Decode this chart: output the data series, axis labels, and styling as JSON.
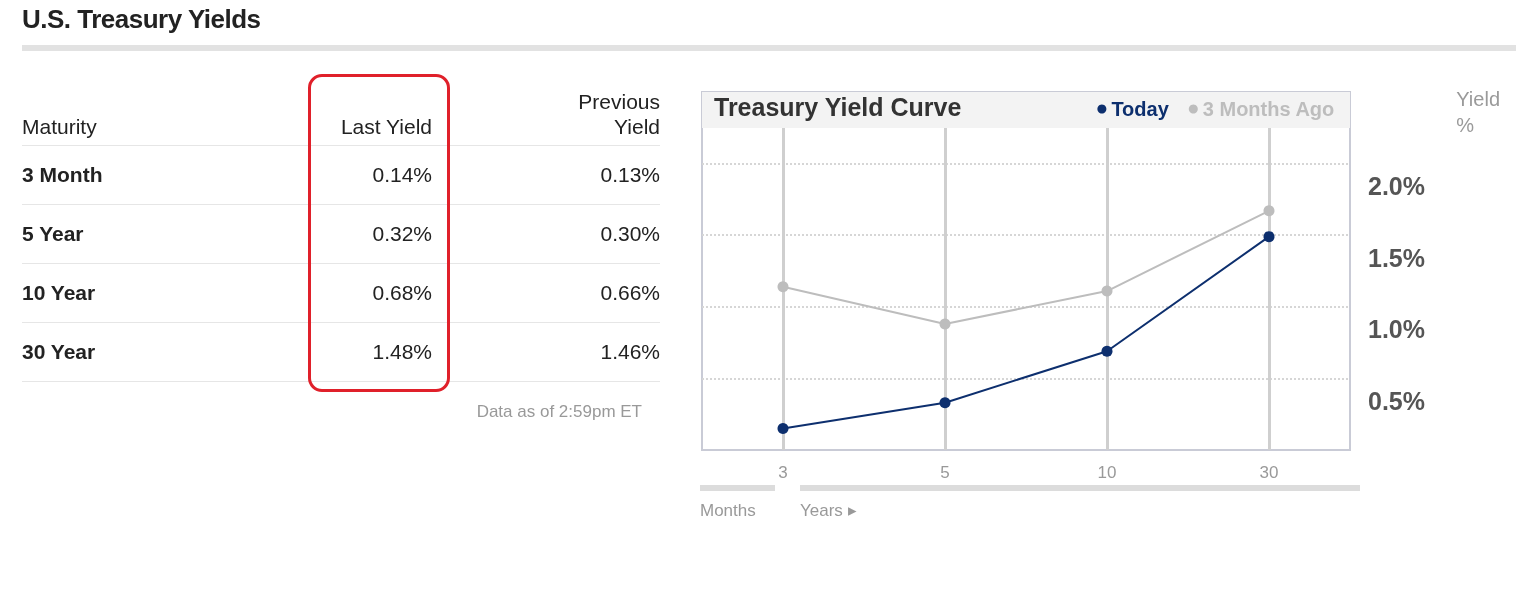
{
  "chart_data": [
    {
      "type": "other",
      "title": "U.S. Treasury Yields",
      "xlabel": "Maturity",
      "categories": [
        "3 Month",
        "5 Year",
        "10 Year",
        "30 Year"
      ],
      "series": [
        {
          "name": "Last Yield",
          "values": [
            0.14,
            0.32,
            0.68,
            1.48
          ],
          "value_labels": [
            "0.14%",
            "0.32%",
            "0.68%",
            "1.48%"
          ]
        },
        {
          "name": "Previous Yield",
          "values": [
            0.13,
            0.3,
            0.66,
            1.46
          ],
          "value_labels": [
            "0.13%",
            "0.30%",
            "0.66%",
            "1.46%"
          ]
        }
      ],
      "annotations": [
        "Data as of 2:59pm ET"
      ]
    },
    {
      "type": "line",
      "title": "Treasury Yield Curve",
      "ylabel": "Yield %",
      "categories": [
        "3",
        "5",
        "10",
        "30"
      ],
      "series": [
        {
          "name": "Today",
          "color": "#0d2f6e",
          "values": [
            0.15,
            0.33,
            0.69,
            1.49
          ]
        },
        {
          "name": "3 Months Ago",
          "color": "#bdbdbd",
          "values": [
            1.14,
            0.88,
            1.11,
            1.67
          ]
        }
      ],
      "ylim": [
        0,
        2.5
      ],
      "yticks": [
        {
          "value": 0.5,
          "label": "0.5%"
        },
        {
          "value": 1.0,
          "label": "1.0%"
        },
        {
          "value": 1.5,
          "label": "1.5%"
        },
        {
          "value": 2.0,
          "label": "2.0%"
        }
      ],
      "grid": true,
      "legend": "top right",
      "marker": "circle",
      "line_style": "solid",
      "annotations": [
        "Months",
        "Years ▸"
      ]
    }
  ]
}
